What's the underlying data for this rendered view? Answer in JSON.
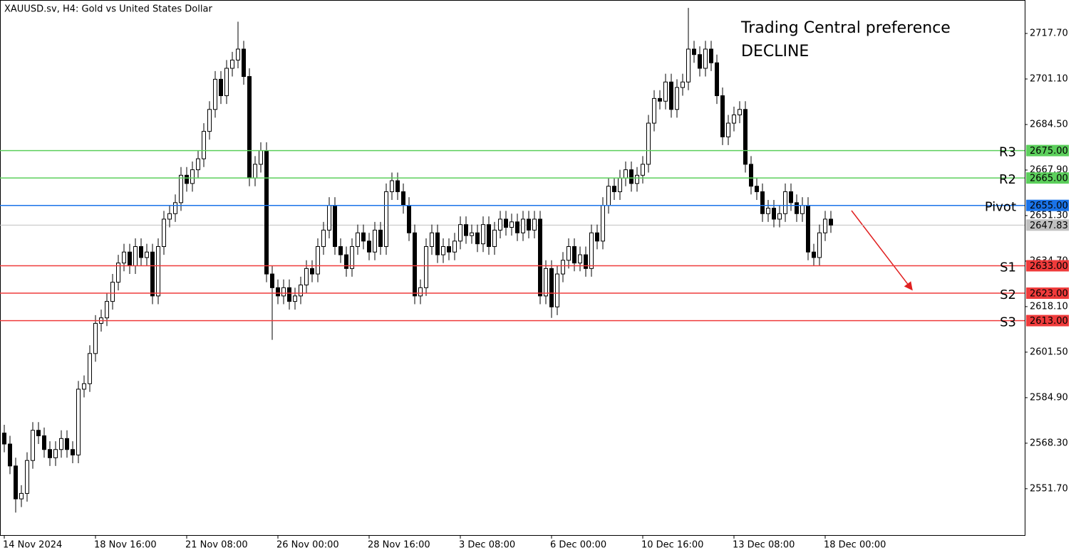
{
  "chart_data": {
    "type": "candlestick",
    "title": "XAUUSD.sv, H4:  Gold vs United States Dollar",
    "annotation": [
      "Trading Central preference",
      "DECLINE"
    ],
    "annotation_color": "#ef3b3b",
    "ylim": [
      2534.8,
      2729.9
    ],
    "yticks": [
      {
        "value": 2717.7,
        "label": "2717.70"
      },
      {
        "value": 2701.1,
        "label": "2701.10"
      },
      {
        "value": 2684.5,
        "label": "2684.50"
      },
      {
        "value": 2667.9,
        "label": "2667.90"
      },
      {
        "value": 2651.3,
        "label": "2651.30"
      },
      {
        "value": 2634.7,
        "label": "2634.70"
      },
      {
        "value": 2618.1,
        "label": "2618.10"
      },
      {
        "value": 2601.5,
        "label": "2601.50"
      },
      {
        "value": 2584.9,
        "label": "2584.90"
      },
      {
        "value": 2568.3,
        "label": "2568.30"
      },
      {
        "value": 2551.7,
        "label": "2551.70"
      }
    ],
    "categories": [
      "14 Nov 2024",
      null,
      null,
      null,
      null,
      null,
      null,
      null,
      null,
      null,
      null,
      null,
      null,
      null,
      null,
      null,
      "18 Nov 16:00",
      null,
      null,
      null,
      null,
      null,
      null,
      null,
      null,
      null,
      null,
      null,
      null,
      null,
      null,
      null,
      "21 Nov 08:00",
      null,
      null,
      null,
      null,
      null,
      null,
      null,
      null,
      null,
      null,
      null,
      null,
      null,
      null,
      null,
      "26 Nov 00:00",
      null,
      null,
      null,
      null,
      null,
      null,
      null,
      null,
      null,
      null,
      null,
      null,
      null,
      null,
      null,
      "28 Nov 16:00",
      null,
      null,
      null,
      null,
      null,
      null,
      null,
      null,
      null,
      null,
      null,
      null,
      null,
      null,
      null,
      "3 Dec 08:00",
      null,
      null,
      null,
      null,
      null,
      null,
      null,
      null,
      null,
      null,
      null,
      null,
      null,
      null,
      null,
      "6 Dec 00:00",
      null,
      null,
      null,
      null,
      null,
      null,
      null,
      null,
      null,
      null,
      null,
      null,
      null,
      null,
      null,
      "10 Dec 16:00",
      null,
      null,
      null,
      null,
      null,
      null,
      null,
      null,
      null,
      null,
      null,
      null,
      null,
      null,
      null,
      "13 Dec 08:00",
      null,
      null,
      null,
      null,
      null,
      null,
      null,
      null,
      null,
      null,
      null,
      null,
      null,
      null,
      null,
      "18 Dec 00:00",
      null
    ],
    "open": [
      2572,
      2568,
      2560,
      2548,
      2550,
      2562,
      2573,
      2571,
      2566,
      2563,
      2566,
      2570,
      2566,
      2564,
      2588,
      2590,
      2601,
      2612,
      2614,
      2620,
      2627,
      2634,
      2638,
      2633,
      2640,
      2636,
      2638,
      2622,
      2640,
      2650,
      2652,
      2656,
      2666,
      2663,
      2668,
      2672,
      2682,
      2690,
      2701,
      2695,
      2705,
      2708,
      2712,
      2702,
      2665,
      2670,
      2675,
      2630,
      2625,
      2622,
      2625,
      2620,
      2622,
      2626,
      2632,
      2630,
      2640,
      2646,
      2655,
      2640,
      2637,
      2632,
      2640,
      2645,
      2642,
      2638,
      2646,
      2640,
      2660,
      2664,
      2660,
      2655,
      2645,
      2622,
      2625,
      2640,
      2645,
      2637,
      2640,
      2638,
      2642,
      2648,
      2644,
      2645,
      2641,
      2648,
      2640,
      2646,
      2650,
      2647,
      2649,
      2645,
      2650,
      2646,
      2650,
      2622,
      2632,
      2618,
      2630,
      2635,
      2640,
      2634,
      2637,
      2632,
      2645,
      2642,
      2655,
      2662,
      2660,
      2665,
      2668,
      2663,
      2666,
      2670,
      2685,
      2694,
      2693,
      2700,
      2690,
      2698,
      2700,
      2712,
      2710,
      2705,
      2712,
      2707,
      2695,
      2680,
      2685,
      2688,
      2690,
      2670,
      2662,
      2660,
      2652,
      2654,
      2650,
      2652,
      2660,
      2656,
      2652,
      2655,
      2638,
      2636,
      2645,
      2650
    ],
    "high": [
      2575,
      2571,
      2563,
      2553,
      2565,
      2576,
      2576,
      2574,
      2569,
      2569,
      2573,
      2573,
      2569,
      2591,
      2593,
      2604,
      2615,
      2617,
      2623,
      2630,
      2637,
      2641,
      2641,
      2643,
      2643,
      2641,
      2641,
      2643,
      2653,
      2655,
      2659,
      2669,
      2669,
      2671,
      2675,
      2685,
      2693,
      2704,
      2704,
      2708,
      2711,
      2722,
      2715,
      2705,
      2673,
      2678,
      2678,
      2633,
      2628,
      2628,
      2628,
      2625,
      2629,
      2635,
      2635,
      2643,
      2649,
      2658,
      2658,
      2643,
      2640,
      2643,
      2648,
      2648,
      2645,
      2649,
      2649,
      2663,
      2667,
      2667,
      2663,
      2658,
      2648,
      2628,
      2643,
      2648,
      2648,
      2643,
      2643,
      2645,
      2651,
      2651,
      2648,
      2648,
      2651,
      2651,
      2649,
      2653,
      2653,
      2652,
      2652,
      2653,
      2653,
      2653,
      2653,
      2635,
      2635,
      2633,
      2638,
      2643,
      2643,
      2640,
      2640,
      2648,
      2648,
      2658,
      2665,
      2665,
      2668,
      2671,
      2671,
      2669,
      2673,
      2688,
      2697,
      2697,
      2703,
      2703,
      2701,
      2703,
      2727,
      2715,
      2713,
      2715,
      2715,
      2710,
      2698,
      2688,
      2691,
      2693,
      2693,
      2673,
      2665,
      2663,
      2657,
      2657,
      2655,
      2663,
      2663,
      2659,
      2658,
      2658,
      2641,
      2648,
      2653,
      2653
    ],
    "low": [
      2565,
      2557,
      2543,
      2545,
      2547,
      2559,
      2568,
      2563,
      2560,
      2560,
      2563,
      2563,
      2561,
      2561,
      2585,
      2587,
      2598,
      2609,
      2611,
      2617,
      2624,
      2631,
      2630,
      2630,
      2633,
      2633,
      2619,
      2619,
      2637,
      2647,
      2649,
      2653,
      2660,
      2660,
      2665,
      2669,
      2679,
      2687,
      2692,
      2692,
      2702,
      2705,
      2699,
      2662,
      2662,
      2667,
      2627,
      2606,
      2619,
      2619,
      2617,
      2617,
      2619,
      2623,
      2627,
      2627,
      2637,
      2643,
      2637,
      2634,
      2629,
      2629,
      2637,
      2639,
      2635,
      2635,
      2637,
      2637,
      2657,
      2657,
      2652,
      2642,
      2619,
      2619,
      2622,
      2637,
      2634,
      2634,
      2635,
      2635,
      2639,
      2641,
      2641,
      2638,
      2638,
      2637,
      2637,
      2643,
      2644,
      2644,
      2642,
      2642,
      2643,
      2643,
      2619,
      2619,
      2614,
      2615,
      2627,
      2632,
      2631,
      2631,
      2629,
      2629,
      2639,
      2639,
      2652,
      2657,
      2657,
      2662,
      2660,
      2660,
      2663,
      2667,
      2682,
      2690,
      2690,
      2687,
      2687,
      2695,
      2697,
      2707,
      2702,
      2702,
      2704,
      2692,
      2677,
      2677,
      2682,
      2685,
      2667,
      2659,
      2657,
      2649,
      2649,
      2647,
      2647,
      2649,
      2653,
      2649,
      2649,
      2635,
      2633,
      2633,
      2642,
      2645
    ],
    "close": [
      2568,
      2560,
      2548,
      2550,
      2562,
      2573,
      2571,
      2566,
      2563,
      2566,
      2570,
      2566,
      2564,
      2588,
      2590,
      2601,
      2612,
      2614,
      2620,
      2627,
      2634,
      2638,
      2633,
      2640,
      2636,
      2638,
      2622,
      2640,
      2650,
      2652,
      2656,
      2666,
      2663,
      2668,
      2672,
      2682,
      2690,
      2701,
      2695,
      2705,
      2708,
      2712,
      2702,
      2665,
      2670,
      2675,
      2630,
      2625,
      2622,
      2625,
      2620,
      2622,
      2626,
      2632,
      2630,
      2640,
      2646,
      2655,
      2640,
      2637,
      2632,
      2640,
      2645,
      2642,
      2638,
      2646,
      2640,
      2660,
      2664,
      2660,
      2655,
      2645,
      2622,
      2625,
      2640,
      2645,
      2637,
      2640,
      2638,
      2642,
      2648,
      2644,
      2645,
      2641,
      2648,
      2640,
      2646,
      2650,
      2647,
      2649,
      2645,
      2650,
      2646,
      2650,
      2622,
      2632,
      2618,
      2630,
      2635,
      2640,
      2634,
      2637,
      2632,
      2645,
      2642,
      2655,
      2662,
      2660,
      2665,
      2668,
      2663,
      2666,
      2670,
      2685,
      2694,
      2693,
      2700,
      2690,
      2698,
      2700,
      2712,
      2710,
      2705,
      2712,
      2707,
      2695,
      2680,
      2685,
      2688,
      2690,
      2670,
      2662,
      2660,
      2652,
      2654,
      2650,
      2652,
      2660,
      2656,
      2652,
      2655,
      2638,
      2636,
      2645,
      2650,
      2647.83
    ],
    "levels": [
      {
        "name": "R3",
        "value": 2675,
        "label": "2675.00",
        "color": "#5ccf5c"
      },
      {
        "name": "R2",
        "value": 2665,
        "label": "2665.00",
        "color": "#5ccf5c"
      },
      {
        "name": "Pivot",
        "value": 2655,
        "label": "2655.00",
        "color": "#1a73e8"
      },
      {
        "name": "S1",
        "value": 2633,
        "label": "2633.00",
        "color": "#ef3b3b"
      },
      {
        "name": "S2",
        "value": 2623,
        "label": "2623.00",
        "color": "#ef3b3b"
      },
      {
        "name": "S3",
        "value": 2613,
        "label": "2613.00",
        "color": "#ef3b3b"
      }
    ],
    "last_price": {
      "value": 2647.83,
      "label": "2647.83",
      "color": "#c0c0c0"
    }
  }
}
